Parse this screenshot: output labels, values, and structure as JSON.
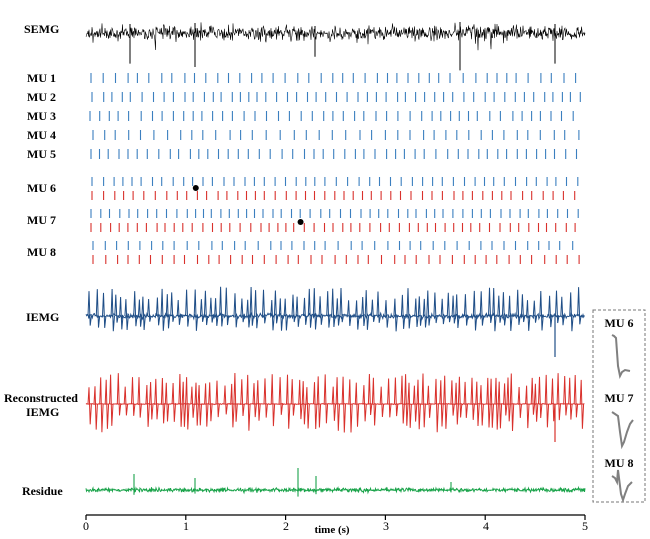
{
  "labels": {
    "semg": "SEMG",
    "mu1": "MU 1",
    "mu2": "MU 2",
    "mu3": "MU 3",
    "mu4": "MU 4",
    "mu5": "MU 5",
    "mu6": "MU 6",
    "mu7": "MU 7",
    "mu8": "MU 8",
    "iemg": "IEMG",
    "reconstructed_line1": "Reconstructed",
    "reconstructed_line2": "IEMG",
    "residue": "Residue"
  },
  "x_axis": {
    "title": "time (s)",
    "range": [
      0,
      5
    ],
    "ticks": [
      "0",
      "1",
      "2",
      "3",
      "4",
      "5"
    ]
  },
  "waveform_panel": {
    "labels": [
      "MU 6",
      "MU 7",
      "MU 8"
    ]
  },
  "colors": {
    "semg": "#000000",
    "spike_blue": "#3b7fbf",
    "spike_red": "#d9312c",
    "iemg": "#1f4e87",
    "reconstructed": "#d9312c",
    "residue": "#1aa34a",
    "waveform": "#808080"
  },
  "markers": [
    {
      "unit": "MU 6",
      "time_s": 1.1
    },
    {
      "unit": "MU 7",
      "time_s": 2.15
    }
  ]
}
